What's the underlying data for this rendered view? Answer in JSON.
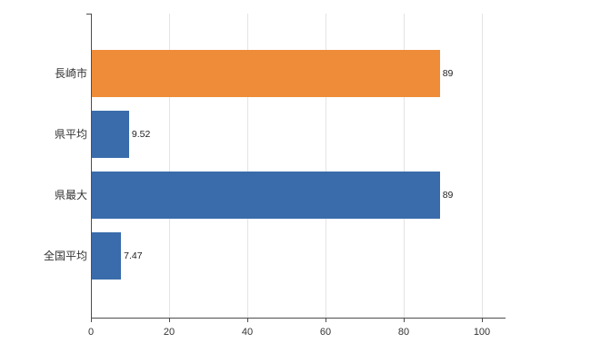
{
  "chart_data": {
    "type": "bar",
    "orientation": "horizontal",
    "title": "",
    "xlabel": "",
    "ylabel": "",
    "categories": [
      "長崎市",
      "県平均",
      "県最大",
      "全国平均"
    ],
    "values": [
      89,
      9.52,
      89,
      7.47
    ],
    "value_labels": [
      "89",
      "9.52",
      "89",
      "7.47"
    ],
    "bar_colors": [
      "#ee8c39",
      "#3a6cab",
      "#3a6cab",
      "#3a6cab"
    ],
    "xlim": [
      0,
      100
    ],
    "xticks": [
      0,
      20,
      40,
      60,
      80,
      100
    ],
    "grid": true,
    "legend": "none",
    "background_color": "#ffffff",
    "axis_color": "#4d4d4d",
    "gridline_color": "#e4e4e4"
  }
}
